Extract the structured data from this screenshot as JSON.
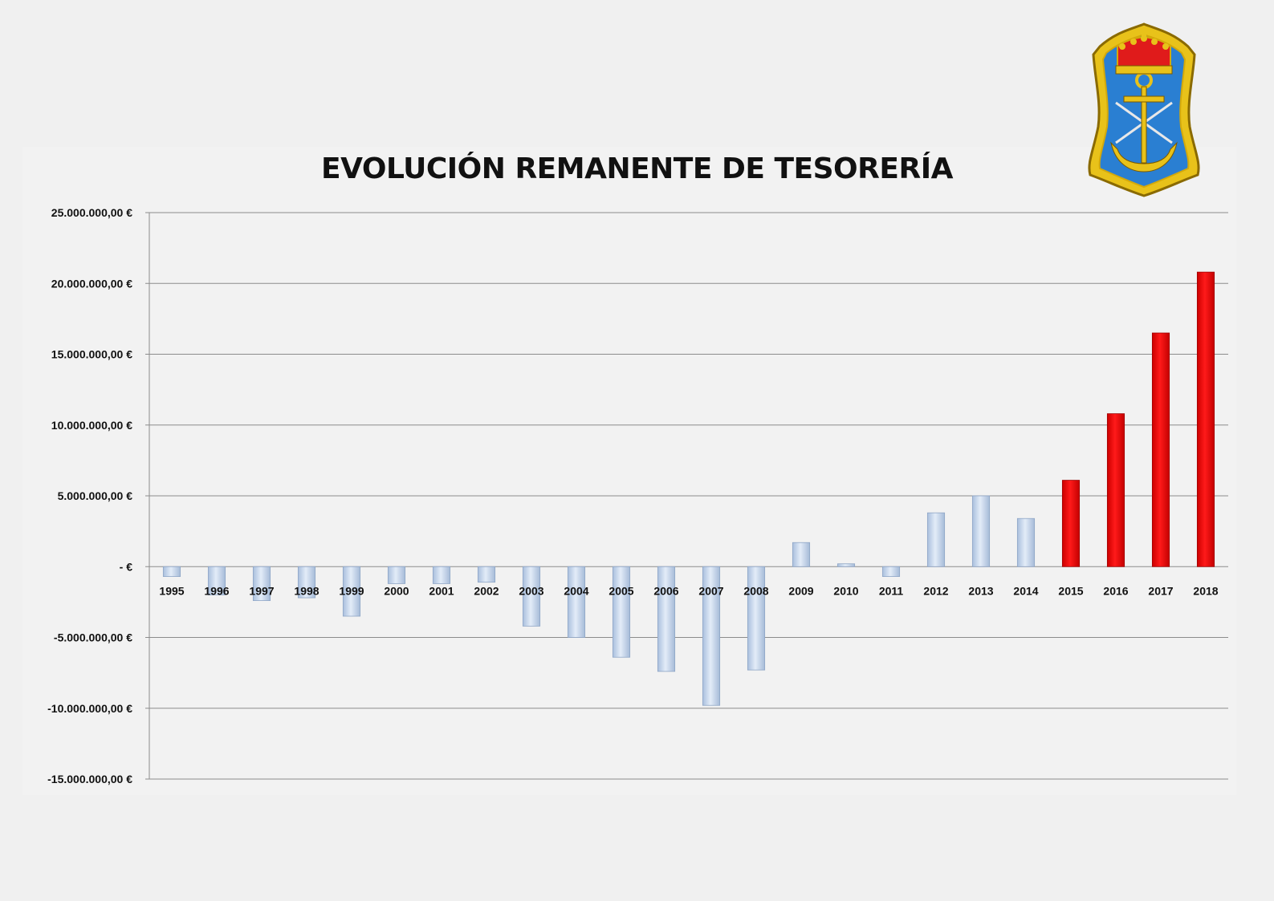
{
  "chart_data": {
    "type": "bar",
    "title": "EVOLUCIÓN REMANENTE DE TESORERÍA",
    "xlabel": "",
    "ylabel": "",
    "ylim": [
      -15000000,
      25000000
    ],
    "yticks": [
      25000000,
      20000000,
      15000000,
      10000000,
      5000000,
      0,
      -5000000,
      -10000000,
      -15000000
    ],
    "ytick_labels": [
      "25.000.000,00 €",
      "20.000.000,00 €",
      "15.000.000,00 €",
      "10.000.000,00 €",
      "5.000.000,00 €",
      "-  €",
      "-5.000.000,00 €",
      "-10.000.000,00 €",
      "-15.000.000,00 €"
    ],
    "grid": true,
    "legend": "none",
    "categories": [
      "1995",
      "1996",
      "1997",
      "1998",
      "1999",
      "2000",
      "2001",
      "2002",
      "2003",
      "2004",
      "2005",
      "2006",
      "2007",
      "2008",
      "2009",
      "2010",
      "2011",
      "2012",
      "2013",
      "2014",
      "2015",
      "2016",
      "2017",
      "2018"
    ],
    "values": [
      -700000,
      -2000000,
      -2400000,
      -2200000,
      -3500000,
      -1200000,
      -1200000,
      -1100000,
      -4200000,
      -5000000,
      -6400000,
      -7400000,
      -9800000,
      -7300000,
      1700000,
      200000,
      -700000,
      3800000,
      5000000,
      3400000,
      6100000,
      10800000,
      16500000,
      20800000
    ],
    "colors": {
      "default_bar": "#c9d9ef",
      "highlight_bar": "#ff0000",
      "highlight_from": "2015"
    }
  },
  "logo": {
    "name": "anchor-crown-emblem"
  }
}
